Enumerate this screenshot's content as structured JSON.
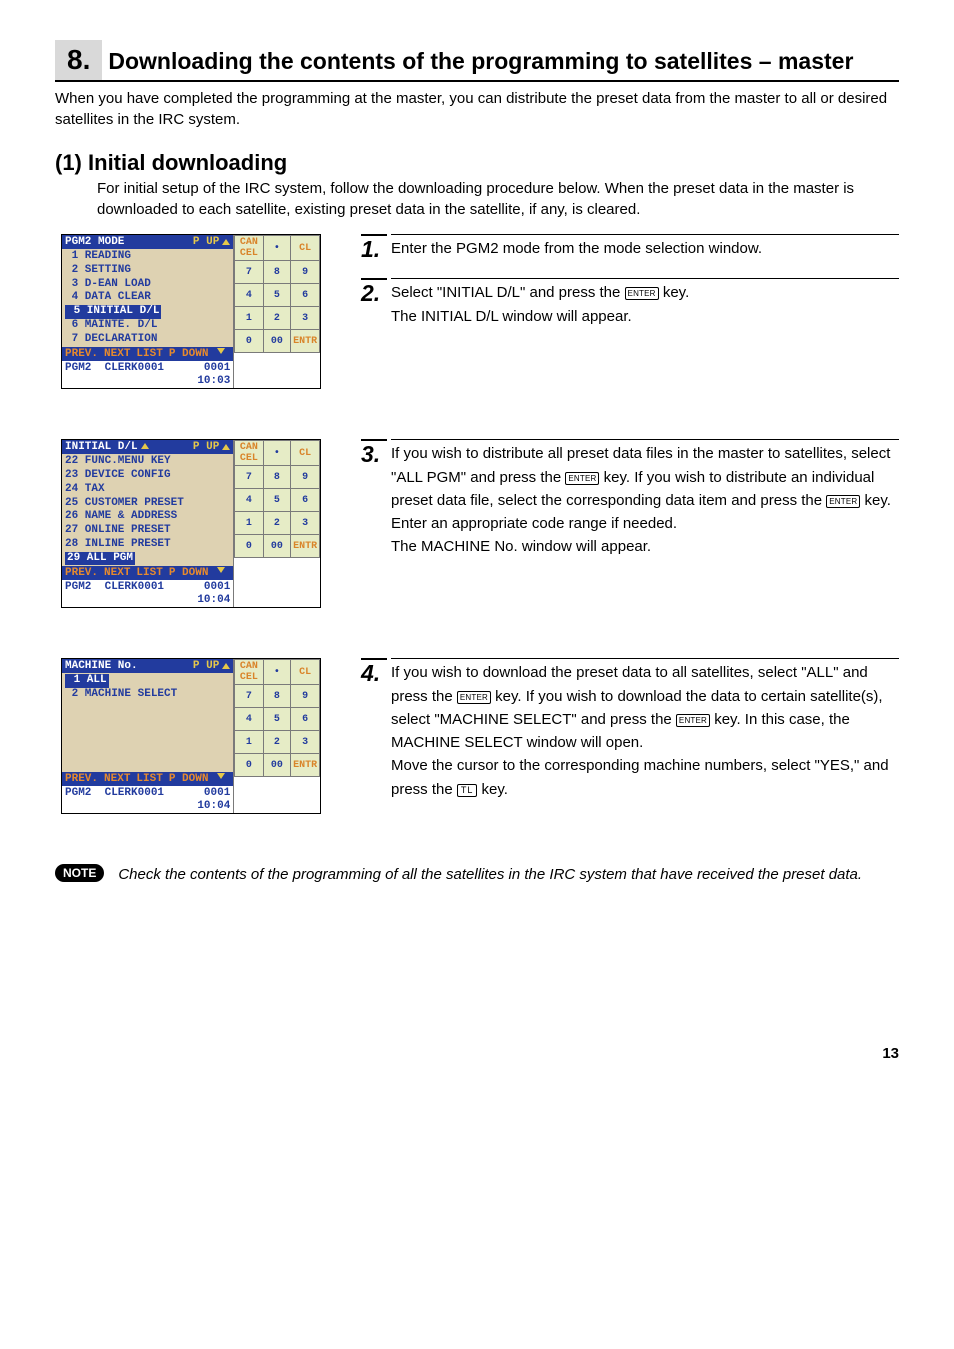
{
  "title": {
    "num": "8.",
    "text": "Downloading the contents of the programming to satellites – master"
  },
  "intro": "When you have completed the programming at the master, you can distribute the preset data from the master to all or desired satellites in the IRC system.",
  "subsection": {
    "num": "(1)",
    "title": "Initial downloading"
  },
  "sub_intro": "For initial setup of the IRC system, follow the downloading procedure below. When the preset data in the master is downloaded to each satellite, existing preset data in the satellite, if any, is cleared.",
  "terminals": [
    {
      "title": "PGM2 MODE",
      "pup": "P UP",
      "body_lines": [
        " 1 READING",
        " 2 SETTING",
        " 3 D-EAN LOAD",
        " 4 DATA CLEAR"
      ],
      "highlight": " 5 INITIAL D/L",
      "body_lines2": [
        " 6 MAINTE. D/L",
        " 7 DECLARATION"
      ],
      "foot": [
        "PREV.",
        "NEXT",
        "LIST",
        "P DOWN"
      ],
      "status_l": "PGM2",
      "status_c": "CLERK0001",
      "status_r": "0001",
      "time": "10:03",
      "scroll": false
    },
    {
      "title": "INITIAL D/L",
      "pup": "P UP",
      "body_lines": [
        "22 FUNC.MENU KEY",
        "23 DEVICE CONFIG",
        "24 TAX",
        "25 CUSTOMER PRESET",
        "26 NAME & ADDRESS",
        "27 ONLINE PRESET",
        "28 INLINE PRESET"
      ],
      "highlight": "29 ALL PGM",
      "body_lines2": [],
      "foot": [
        "PREV.",
        "NEXT",
        "LIST",
        "P DOWN"
      ],
      "status_l": "PGM2",
      "status_c": "CLERK0001",
      "status_r": "0001",
      "time": "10:04",
      "scroll": true
    },
    {
      "title": "MACHINE No.",
      "pup": "P UP",
      "body_lines": [],
      "highlight": " 1 ALL",
      "body_lines2": [
        " 2 MACHINE SELECT",
        "",
        "",
        "",
        "",
        ""
      ],
      "foot": [
        "PREV.",
        "NEXT",
        "LIST",
        "P DOWN"
      ],
      "status_l": "PGM2",
      "status_c": "CLERK0001",
      "status_r": "0001",
      "time": "10:04",
      "scroll": false
    }
  ],
  "keypad": {
    "rows": [
      [
        "CAN\nCEL",
        "•",
        "CL"
      ],
      [
        "7",
        "8",
        "9"
      ],
      [
        "4",
        "5",
        "6"
      ],
      [
        "1",
        "2",
        "3"
      ],
      [
        "0",
        "00",
        "ENTR"
      ]
    ],
    "orange_cells": [
      "CAN\nCEL",
      "CL",
      "ENTR"
    ]
  },
  "keys": {
    "enter": "ENTER",
    "tl": "TL"
  },
  "steps": [
    {
      "num": "1.",
      "text_parts": [
        {
          "t": "Enter the PGM2 mode from the mode selection window."
        }
      ]
    },
    {
      "num": "2.",
      "text_parts": [
        {
          "t": "Select \"INITIAL D/L\" and press the "
        },
        {
          "key": "enter"
        },
        {
          "t": " key."
        },
        {
          "br": true
        },
        {
          "t": "The INITIAL D/L window will appear."
        }
      ]
    },
    {
      "num": "3.",
      "text_parts": [
        {
          "t": "If you wish to distribute all preset data files in the master to satellites, select \"ALL PGM\" and press the "
        },
        {
          "key": "enter"
        },
        {
          "t": " key. If you wish to distribute an individual preset data file, select the corresponding data item and press the "
        },
        {
          "key": "enter"
        },
        {
          "t": " key."
        },
        {
          "br": true
        },
        {
          "t": "Enter an appropriate code range if needed."
        },
        {
          "br": true
        },
        {
          "t": "The MACHINE No. window will appear."
        }
      ]
    },
    {
      "num": "4.",
      "text_parts": [
        {
          "t": "If you wish to download the preset data to all satellites, select \"ALL\" and press the "
        },
        {
          "key": "enter"
        },
        {
          "t": " key. If you wish to download the data to certain satellite(s), select \"MACHINE SELECT\" and press the "
        },
        {
          "key": "enter"
        },
        {
          "t": " key. In this case, the MACHINE SELECT window will open."
        },
        {
          "br": true
        },
        {
          "t": "Move the cursor to the corresponding machine numbers, select \"YES,\" and press the "
        },
        {
          "key": "tl"
        },
        {
          "t": " key."
        }
      ]
    }
  ],
  "note_label": "NOTE",
  "note_text": "Check the contents of the programming of all the satellites in the IRC system that have received the preset data.",
  "page_number": "13"
}
